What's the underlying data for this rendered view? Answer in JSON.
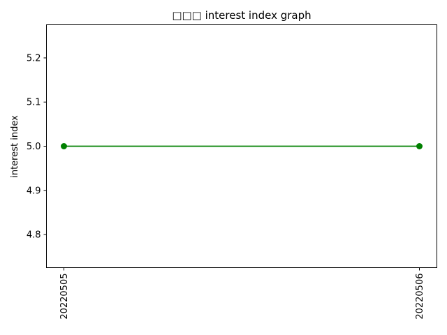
{
  "chart_data": {
    "type": "line",
    "title": "□□□ interest index graph",
    "xlabel": "",
    "ylabel": "interest index",
    "categories": [
      "20220505",
      "20220506"
    ],
    "series": [
      {
        "values": [
          5.0,
          5.0
        ],
        "color": "#008000",
        "marker": "circle"
      }
    ],
    "ylim": [
      4.725,
      5.275
    ],
    "yticks": [
      4.8,
      4.9,
      5.0,
      5.1,
      5.2
    ],
    "grid": false,
    "legend": "none"
  }
}
